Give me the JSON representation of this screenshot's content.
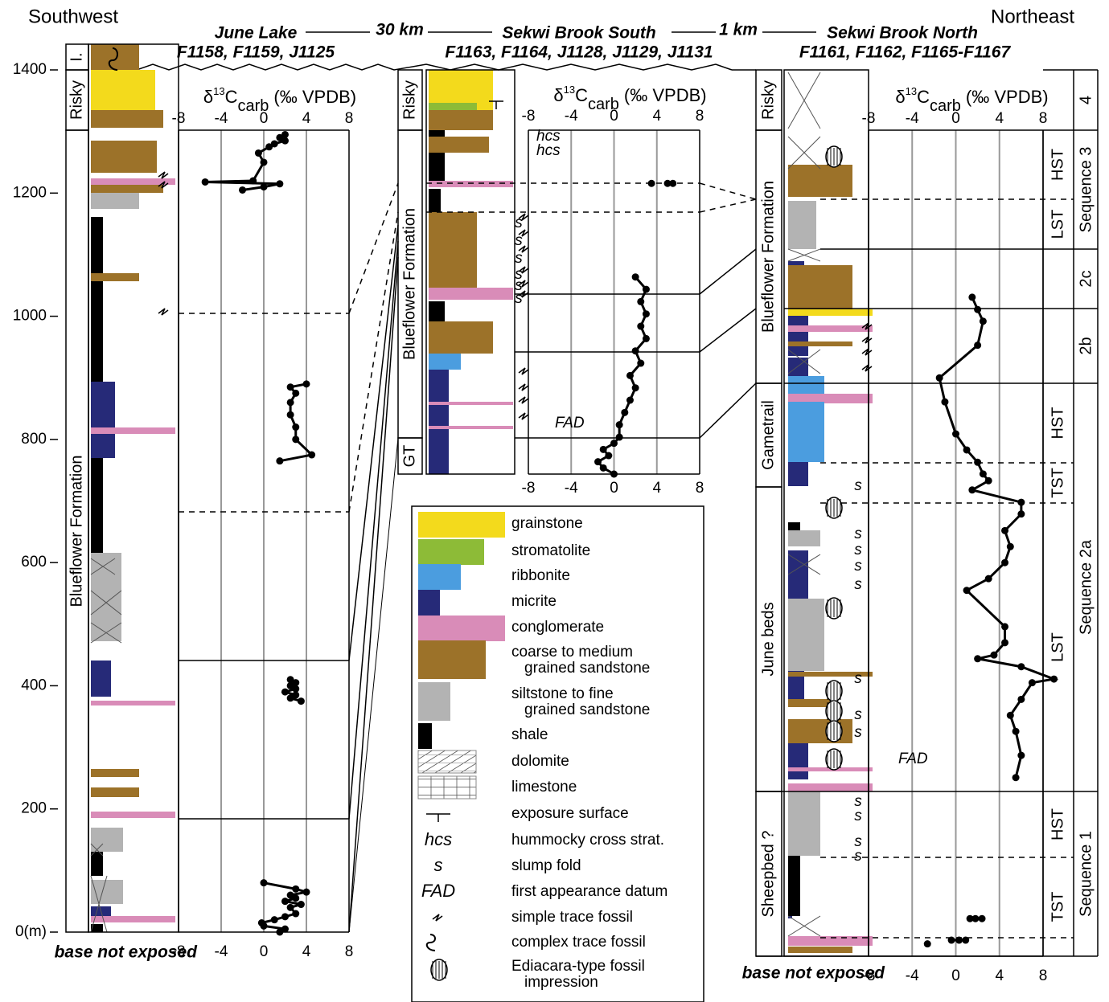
{
  "header": {
    "left": "Southwest",
    "right": "Northeast",
    "sites": [
      {
        "name": "June Lake",
        "samples": "F1158, F1159, J1125"
      },
      {
        "name": "Sekwi Brook South",
        "samples": "F1163, F1164, J1128, J1129, J1131"
      },
      {
        "name": "Sekwi Brook North",
        "samples": "F1161, F1162, F1165-F1167"
      }
    ],
    "distances": [
      "30 km",
      "1 km"
    ]
  },
  "depth_axis": {
    "lim": [
      0,
      1400
    ],
    "ticks": [
      {
        "value": 0,
        "label": "0(m)"
      },
      200,
      400,
      600,
      800,
      1000,
      1200,
      1400
    ]
  },
  "sections": [
    {
      "formations": [
        "I.",
        "Risky",
        "Blueflower Formation"
      ],
      "axis_title": {
        "pre": "δ",
        "sup": "13",
        "main": "C",
        "sub": "carb",
        "post": "(‰ VPDB)"
      },
      "xlim": [
        -8,
        8
      ],
      "xticks": [
        -8,
        -4,
        0,
        4,
        8
      ],
      "depth": [
        0,
        5,
        10,
        15,
        20,
        25,
        30,
        40,
        45,
        50,
        55,
        60,
        65,
        70,
        80,
        null,
        375,
        380,
        385,
        390,
        395,
        400,
        405,
        410,
        null,
        765,
        775,
        800,
        820,
        840,
        860,
        875,
        885,
        890,
        null,
        1205,
        1210,
        1215,
        1218,
        1220,
        1250,
        1265,
        1275,
        1280,
        1285,
        1290,
        1295
      ],
      "d13c": [
        1.5,
        2,
        0,
        -0.2,
        1,
        2,
        3,
        2.5,
        3.5,
        2,
        3,
        2.5,
        4,
        3,
        0,
        null,
        3.5,
        2.5,
        3,
        2,
        3,
        2.5,
        3,
        2.5,
        null,
        1.5,
        4.5,
        3,
        3,
        2.5,
        2.5,
        3,
        2.5,
        4,
        null,
        -2,
        0,
        1.5,
        -5.5,
        -1,
        0,
        -0.5,
        0.5,
        1,
        2,
        1.5,
        2
      ],
      "base_note": "base not exposed"
    },
    {
      "formations": [
        "Risky",
        "Blueflower Formation",
        "GT"
      ],
      "axis_title": {
        "pre": "δ",
        "sup": "13",
        "main": "C",
        "sub": "carb",
        "post": "(‰ VPDB)"
      },
      "xlim": [
        -8,
        8
      ],
      "xticks": [
        -8,
        -4,
        0,
        4,
        8
      ],
      "depth": [
        0,
        10,
        20,
        30,
        40,
        50,
        60,
        80,
        100,
        120,
        140,
        160,
        180,
        200,
        220,
        240,
        260,
        280,
        300,
        320,
        null,
        472,
        null,
        472,
        null,
        472
      ],
      "d13c": [
        0,
        -1,
        -1.5,
        -0.5,
        -1,
        0,
        0.5,
        0.5,
        1,
        1.5,
        2,
        1.5,
        2.5,
        2,
        3,
        2.5,
        3,
        2.5,
        3,
        2,
        null,
        3.5,
        null,
        5.5,
        null,
        5
      ],
      "labels": [
        "hcs",
        "hcs",
        "FAD",
        "s",
        "s",
        "s",
        "s",
        "s",
        "s"
      ]
    },
    {
      "formations": [
        "Risky",
        "Blueflower Formation",
        "Gametrail",
        "June beds",
        "Sheepbed ?"
      ],
      "axis_title": {
        "pre": "δ",
        "sup": "13",
        "main": "C",
        "sub": "carb",
        "post": "(‰ VPDB)"
      },
      "xlim": [
        -8,
        8
      ],
      "xticks": [
        -8,
        -4,
        0,
        4,
        8
      ],
      "depth": [
        7,
        null,
        13,
        13,
        13,
        null,
        48,
        48,
        48,
        null,
        277,
        313,
        352,
        378,
        404,
        431,
        437,
        457,
        470,
        476,
        496,
        522,
        581,
        600,
        626,
        652,
        678,
        705,
        724,
        744,
        759,
        770,
        789,
        809,
        835,
        887,
        926,
        979,
        1018,
        1037,
        1057
      ],
      "d13c": [
        -2.6,
        null,
        -0.4,
        0.3,
        0.9,
        null,
        1.3,
        1.8,
        2.4,
        null,
        5.5,
        6,
        5.5,
        5,
        6,
        7,
        9,
        6,
        2,
        3.5,
        4.5,
        4.5,
        1,
        3,
        4.5,
        5,
        4.5,
        6,
        6,
        1.5,
        3,
        2.5,
        2,
        1,
        0,
        -1,
        -1.5,
        2,
        2.5,
        2,
        1.5
      ],
      "labels": [
        "FAD",
        "s",
        "s",
        "s",
        "s",
        "s",
        "s",
        "s",
        "s",
        "s",
        "s",
        "s",
        "s"
      ],
      "systems_tracts": [
        "HST",
        "LST",
        "HST",
        "TST",
        "LST",
        "HST",
        "TST"
      ],
      "sequences": [
        "4",
        "Sequence 3",
        "2c",
        "2b",
        "Sequence 2a",
        "Sequence 1"
      ],
      "base_note": "base not exposed"
    }
  ],
  "legend": [
    {
      "label": [
        "grainstone"
      ],
      "color": "#f3da1c"
    },
    {
      "label": [
        "stromatolite"
      ],
      "color": "#8dbb37"
    },
    {
      "label": [
        "ribbonite"
      ],
      "color": "#4b9ddf"
    },
    {
      "label": [
        "micrite"
      ],
      "color": "#262a78"
    },
    {
      "label": [
        "conglomerate"
      ],
      "color": "#d98cb8"
    },
    {
      "label": [
        "coarse to medium",
        "grained sandstone"
      ],
      "color": "#9c7229"
    },
    {
      "label": [
        "siltstone to fine",
        "grained sandstone"
      ],
      "color": "#b3b3b3"
    },
    {
      "label": [
        "shale"
      ],
      "color": "#000000"
    },
    {
      "label": [
        "dolomite"
      ]
    },
    {
      "label": [
        "limestone"
      ]
    },
    {
      "label": [
        "exposure surface"
      ]
    },
    {
      "symbol": "hcs",
      "label": [
        "hummocky cross strat."
      ]
    },
    {
      "symbol": "s",
      "label": [
        "slump fold"
      ]
    },
    {
      "symbol": "FAD",
      "label": [
        "first appearance datum"
      ]
    },
    {
      "label": [
        "simple trace fossil"
      ]
    },
    {
      "label": [
        "complex trace fossil"
      ]
    },
    {
      "label": [
        "Ediacara-type fossil",
        "impression"
      ]
    }
  ]
}
